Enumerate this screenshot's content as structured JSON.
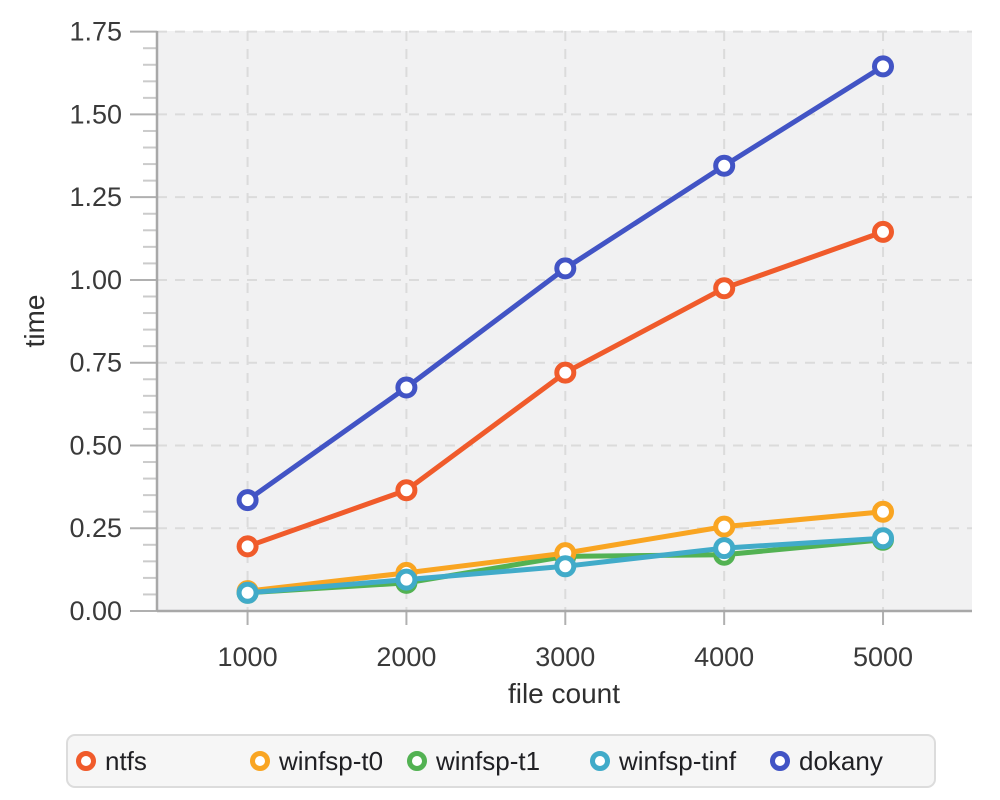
{
  "chart_data": {
    "type": "line",
    "title": "",
    "xlabel": "file count",
    "ylabel": "time",
    "x": [
      1000,
      2000,
      3000,
      4000,
      5000
    ],
    "xtick_labels": [
      "1000",
      "2000",
      "3000",
      "4000",
      "5000"
    ],
    "ytick_labels": [
      "0.00",
      "0.25",
      "0.50",
      "0.75",
      "1.00",
      "1.25",
      "1.50",
      "1.75"
    ],
    "ytick_step": 0.25,
    "y_minor_tick_step": 0.05,
    "xlim": [
      430,
      5560
    ],
    "ylim": [
      0,
      1.752
    ],
    "grid": "dashed",
    "plot_bg": "#f1f1f2",
    "grid_color": "#dbdbdb",
    "axis_color": "#a8a8a8",
    "minor_tick_color": "#cbcbcb",
    "major_tick_color": "#b0b0b0",
    "legend_position": "bottom",
    "series": [
      {
        "name": "ntfs",
        "color": "#f05b2b",
        "values": [
          0.195,
          0.365,
          0.72,
          0.975,
          1.145
        ]
      },
      {
        "name": "winfsp-t0",
        "color": "#f9a522",
        "values": [
          0.06,
          0.115,
          0.175,
          0.255,
          0.3
        ]
      },
      {
        "name": "winfsp-t1",
        "color": "#53b253",
        "values": [
          0.055,
          0.085,
          0.165,
          0.17,
          0.215
        ]
      },
      {
        "name": "winfsp-tinf",
        "color": "#41abc9",
        "values": [
          0.055,
          0.095,
          0.135,
          0.19,
          0.22
        ]
      },
      {
        "name": "dokany",
        "color": "#4254c5",
        "values": [
          0.335,
          0.675,
          1.035,
          1.345,
          1.645
        ]
      }
    ],
    "draw_order": [
      "ntfs",
      "winfsp-t1",
      "winfsp-t0",
      "winfsp-tinf",
      "dokany"
    ],
    "legend_items": [
      "ntfs",
      "winfsp-t0",
      "winfsp-t1",
      "winfsp-tinf",
      "dokany"
    ]
  }
}
